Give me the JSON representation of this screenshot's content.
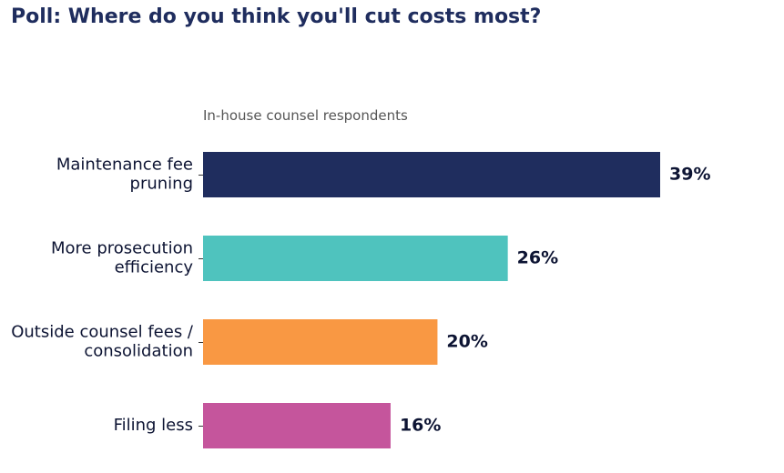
{
  "chart_data": {
    "type": "bar",
    "orientation": "horizontal",
    "title": "Poll: Where do you think you'll cut costs most?",
    "subtitle": "In-house counsel respondents",
    "categories": [
      [
        "Maintenance fee",
        "pruning"
      ],
      [
        "More prosecution",
        "efficiency"
      ],
      [
        "Outside counsel fees /",
        "consolidation"
      ],
      [
        "Filing less"
      ]
    ],
    "values": [
      39,
      26,
      20,
      16
    ],
    "value_labels": [
      "39%",
      "26%",
      "20%",
      "16%"
    ],
    "colors": [
      "#1f2d5e",
      "#4fc3be",
      "#f99843",
      "#c5559c"
    ],
    "xlim": [
      0,
      39
    ],
    "grid": false,
    "legend": "none"
  }
}
